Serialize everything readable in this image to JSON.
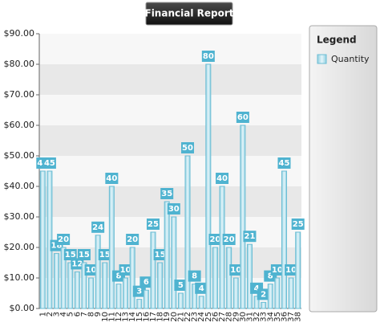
{
  "chart_data": {
    "type": "bar",
    "title": "Financial Report",
    "categories": [
      "1",
      "2",
      "3",
      "4",
      "5",
      "6",
      "7",
      "8",
      "9",
      "10",
      "11",
      "12",
      "13",
      "14",
      "15",
      "16",
      "17",
      "18",
      "19",
      "20",
      "21",
      "22",
      "23",
      "24",
      "25",
      "26",
      "27",
      "28",
      "29",
      "30",
      "31",
      "32",
      "33",
      "34",
      "35",
      "36",
      "37",
      "38"
    ],
    "series": [
      {
        "name": "Quantity",
        "color": "#a9dbe8",
        "values": [
          45,
          45,
          18,
          20,
          15,
          12,
          15,
          10,
          24,
          15,
          40,
          8,
          10,
          20,
          3,
          6,
          25,
          15,
          35,
          30,
          5,
          50,
          8,
          4,
          80,
          20,
          40,
          20,
          10,
          60,
          21,
          4,
          2,
          8,
          10,
          45,
          10,
          25
        ]
      }
    ],
    "ylim": [
      0,
      90
    ],
    "yticks": [
      {
        "value": 0,
        "label": "$0.00"
      },
      {
        "value": 10,
        "label": "$10.00"
      },
      {
        "value": 20,
        "label": "$20.00"
      },
      {
        "value": 30,
        "label": "$30.00"
      },
      {
        "value": 40,
        "label": "$40.00"
      },
      {
        "value": 50,
        "label": "$50.00"
      },
      {
        "value": 60,
        "label": "$60.00"
      },
      {
        "value": 70,
        "label": "$70.00"
      },
      {
        "value": 80,
        "label": "$80.00"
      },
      {
        "value": 90,
        "label": "$90.00"
      }
    ],
    "legend_title": "Legend",
    "legend_position": "right",
    "grid": true
  }
}
